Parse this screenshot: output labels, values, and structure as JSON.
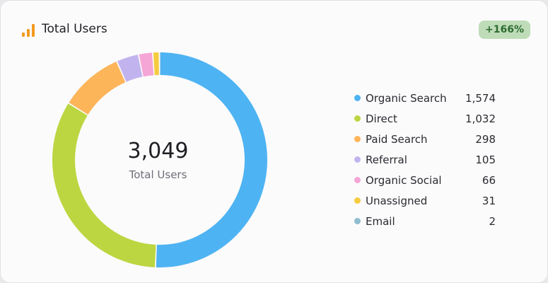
{
  "header": {
    "title": "Total Users",
    "icon": "bar-chart-icon",
    "icon_color": "#f39a1f",
    "change_badge": "+166%"
  },
  "center": {
    "value": "3,049",
    "label": "Total Users"
  },
  "chart_data": {
    "type": "pie",
    "donut": true,
    "title": "Total Users",
    "total": 3049,
    "categories": [
      "Organic Search",
      "Direct",
      "Paid Search",
      "Referral",
      "Organic Social",
      "Unassigned",
      "Email"
    ],
    "values": [
      1574,
      1032,
      298,
      105,
      66,
      31,
      2
    ],
    "value_labels": [
      "1,574",
      "1,032",
      "298",
      "105",
      "66",
      "31",
      "2"
    ],
    "colors": [
      "#4eb3f2",
      "#bcd641",
      "#fdb55a",
      "#c1b4ee",
      "#f5a5d6",
      "#f6cb40",
      "#8fbcd0"
    ],
    "legend_position": "right"
  }
}
